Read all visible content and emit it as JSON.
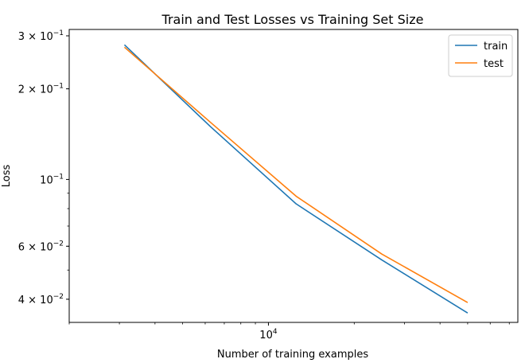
{
  "chart_data": {
    "type": "line",
    "title": "Train and Test Losses vs Training Set Size",
    "xlabel": "Number of training examples",
    "ylabel": "Loss",
    "xscale": "log",
    "yscale": "log",
    "xlim": [
      2000,
      75000
    ],
    "ylim": [
      0.0335,
      0.315
    ],
    "grid": false,
    "legend": "top-right",
    "x": [
      3125,
      6250,
      12500,
      25000,
      50000
    ],
    "series": [
      {
        "name": "train",
        "color": "#1f77b4",
        "values": [
          0.28,
          0.15,
          0.083,
          0.054,
          0.036
        ]
      },
      {
        "name": "test",
        "color": "#ff7f0e",
        "values": [
          0.275,
          0.155,
          0.088,
          0.0565,
          0.039
        ]
      }
    ],
    "x_ticks": [
      {
        "value": 10000,
        "label": "10^4"
      }
    ],
    "y_ticks": [
      {
        "value": 0.3,
        "label": "3 × 10^-1"
      },
      {
        "value": 0.2,
        "label": "2 × 10^-1"
      },
      {
        "value": 0.1,
        "label": "10^-1"
      },
      {
        "value": 0.06,
        "label": "6 × 10^-2"
      },
      {
        "value": 0.04,
        "label": "4 × 10^-2"
      }
    ]
  }
}
